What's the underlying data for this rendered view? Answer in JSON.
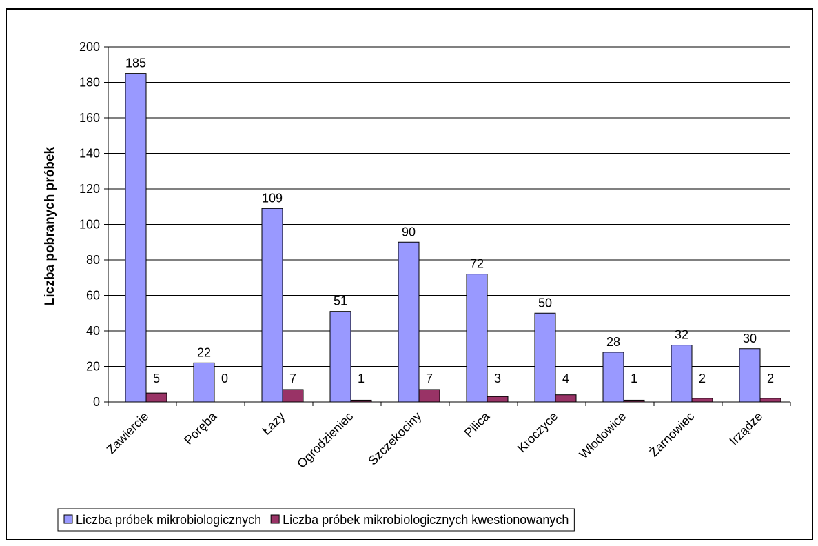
{
  "chart_data": {
    "type": "bar",
    "ylabel": "Liczba pobranych próbek",
    "xlabel": "",
    "ylim": [
      0,
      200
    ],
    "yticks": [
      0,
      20,
      40,
      60,
      80,
      100,
      120,
      140,
      160,
      180,
      200
    ],
    "grid": true,
    "legend_position": "bottom",
    "categories": [
      "Zawiercie",
      "Poręba",
      "Łazy",
      "Ogrodzieniec",
      "Szczekociny",
      "Pilica",
      "Kroczyce",
      "Włodowice",
      "Żarnowiec",
      "Irządze"
    ],
    "series": [
      {
        "name": "Liczba próbek mikrobiologicznych",
        "color": "#9999ff",
        "values": [
          185,
          22,
          109,
          51,
          90,
          72,
          50,
          28,
          32,
          30
        ]
      },
      {
        "name": "Liczba próbek mikrobiologicznych kwestionowanych",
        "color": "#993366",
        "values": [
          5,
          0,
          7,
          1,
          7,
          3,
          4,
          1,
          2,
          2
        ]
      }
    ]
  }
}
